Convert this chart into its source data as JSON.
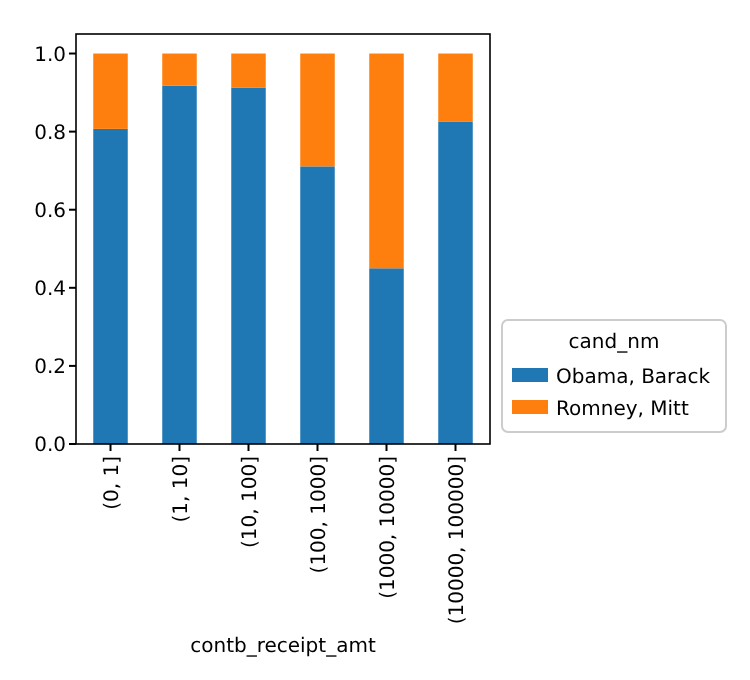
{
  "chart_data": {
    "type": "bar",
    "stacked": true,
    "xlabel": "contb_receipt_amt",
    "legend_title": "cand_nm",
    "legend": "right",
    "categories": [
      "(0, 1]",
      "(1, 10]",
      "(10, 100]",
      "(100, 1000]",
      "(1000, 10000]",
      "(10000, 100000]"
    ],
    "series": [
      {
        "name": "Obama, Barack",
        "color": "#1f77b4",
        "values": [
          0.807,
          0.918,
          0.913,
          0.711,
          0.45,
          0.826
        ]
      },
      {
        "name": "Romney, Mitt",
        "color": "#ff7f0e",
        "values": [
          0.193,
          0.082,
          0.087,
          0.289,
          0.55,
          0.174
        ]
      }
    ],
    "ylim": [
      0,
      1.05
    ],
    "yticks": [
      {
        "value": 0,
        "label": "0.0"
      },
      {
        "value": 0.2,
        "label": "0.2"
      },
      {
        "value": 0.4,
        "label": "0.4"
      },
      {
        "value": 0.6,
        "label": "0.6"
      },
      {
        "value": 0.8,
        "label": "0.8"
      },
      {
        "value": 1,
        "label": "1.0"
      }
    ],
    "grid": false
  }
}
